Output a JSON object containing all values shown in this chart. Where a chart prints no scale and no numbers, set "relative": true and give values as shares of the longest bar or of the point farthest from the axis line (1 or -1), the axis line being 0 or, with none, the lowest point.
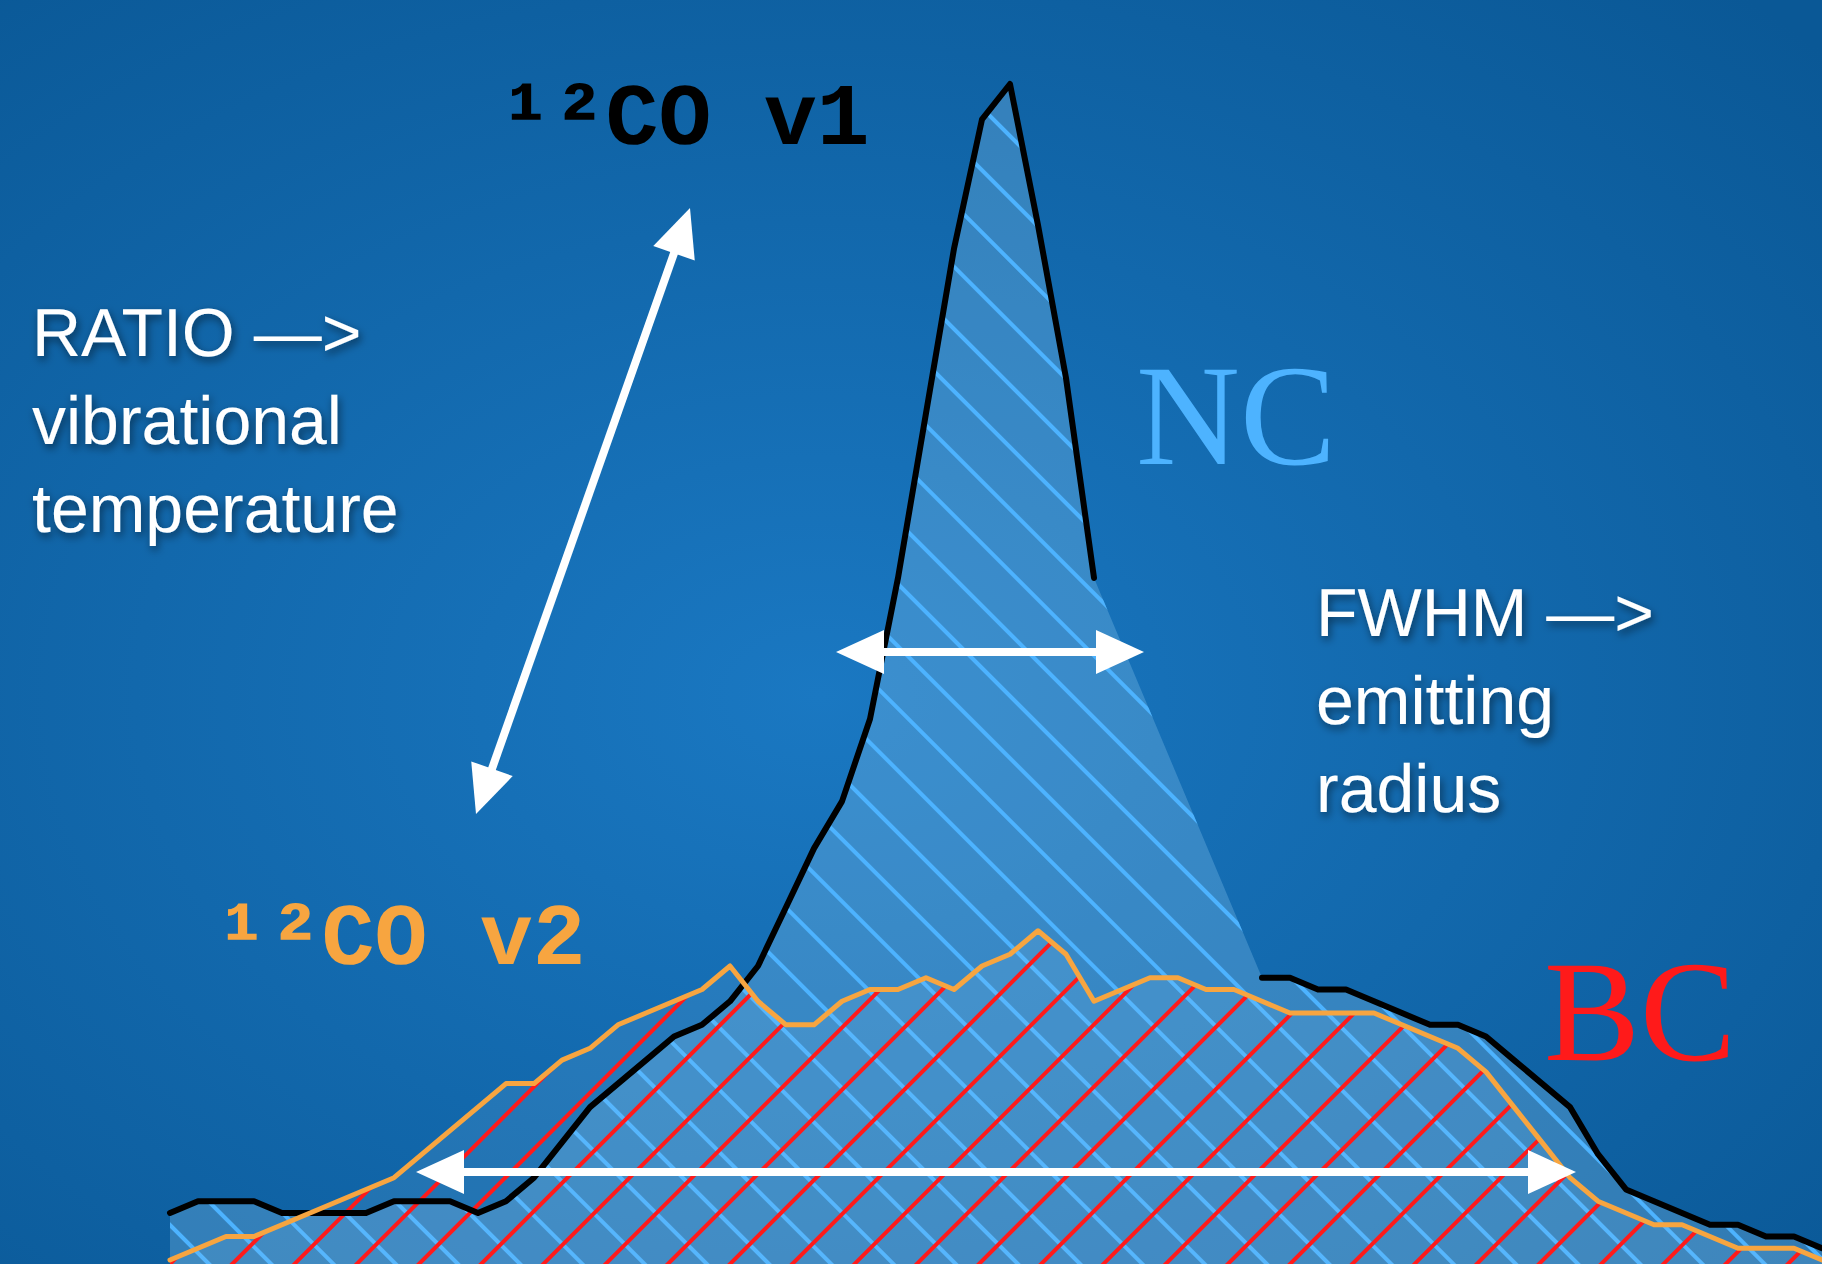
{
  "chart_data": {
    "type": "area",
    "relative": true,
    "legend": "left",
    "categories": [
      null,
      null,
      null,
      null,
      null,
      null,
      null,
      null,
      null,
      null,
      null,
      null,
      null,
      null,
      null,
      null,
      null,
      null,
      null,
      null,
      null,
      null,
      null,
      null,
      null,
      null,
      null,
      null,
      null,
      null,
      null,
      null,
      null,
      null,
      null,
      null,
      null,
      null,
      null,
      null,
      null,
      null,
      null,
      null,
      null,
      null,
      null,
      null,
      null,
      null,
      null,
      null,
      null,
      null,
      null,
      null,
      null,
      null,
      null,
      null
    ],
    "series": [
      {
        "name": "¹²CO v1",
        "color": "#000000",
        "values": [
          0.04,
          0.05,
          0.05,
          0.05,
          0.04,
          0.04,
          0.04,
          0.04,
          0.05,
          0.05,
          0.05,
          0.04,
          0.05,
          0.07,
          0.1,
          0.13,
          0.15,
          0.17,
          0.19,
          0.2,
          0.22,
          0.25,
          0.3,
          0.35,
          0.39,
          0.46,
          0.58,
          0.72,
          0.86,
          0.97,
          1,
          0.88,
          0.75,
          0.58,
          null,
          null,
          null,
          null,
          null,
          0.24,
          0.24,
          0.23,
          0.23,
          0.22,
          0.21,
          0.2,
          0.2,
          0.19,
          0.17,
          0.15,
          0.13,
          0.09,
          0.06,
          0.05,
          0.04,
          0.03,
          0.03,
          0.02,
          0.02,
          0.01
        ]
      },
      {
        "name": "¹²CO v2",
        "color": "#f7a540",
        "values": [
          0,
          0.01,
          0.02,
          0.02,
          0.03,
          0.04,
          0.05,
          0.06,
          0.07,
          0.09,
          0.11,
          0.13,
          0.15,
          0.15,
          0.17,
          0.18,
          0.2,
          0.21,
          0.22,
          0.23,
          0.25,
          0.22,
          0.2,
          0.2,
          0.22,
          0.23,
          0.23,
          0.24,
          0.23,
          0.25,
          0.26,
          0.28,
          0.26,
          0.22,
          0.23,
          0.24,
          0.24,
          0.23,
          0.23,
          0.22,
          0.21,
          0.21,
          0.21,
          0.21,
          0.2,
          0.19,
          0.18,
          0.16,
          0.13,
          0.1,
          0.07,
          0.05,
          0.04,
          0.03,
          0.03,
          0.02,
          0.01,
          0.01,
          0.01,
          0
        ]
      }
    ],
    "annotations": [
      "RATIO —>\nvibrational\ntemperature",
      "FWHM —>\nemitting\nradius",
      "NC",
      "BC"
    ]
  }
}
